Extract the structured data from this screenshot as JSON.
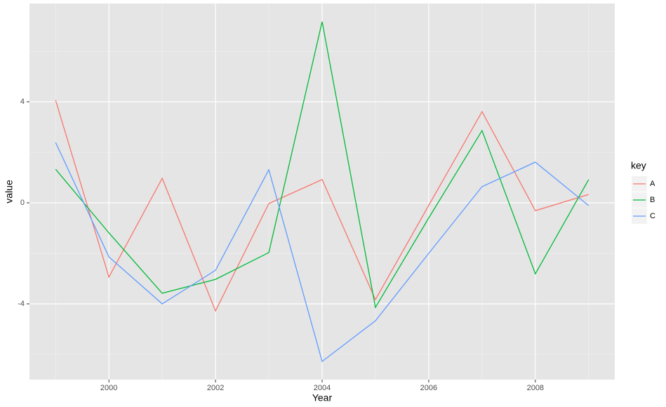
{
  "chart_data": {
    "type": "line",
    "x_label": "Year",
    "y_label": "value",
    "x": [
      1999,
      2000,
      2001,
      2002,
      2003,
      2004,
      2005,
      2006,
      2007,
      2008,
      2009
    ],
    "series": [
      {
        "name": "A",
        "color": "#f8766d",
        "values": [
          4.06,
          -2.94,
          0.97,
          -4.28,
          -0.03,
          0.92,
          -3.83,
          -0.1,
          3.61,
          -0.31,
          0.33
        ]
      },
      {
        "name": "B",
        "color": "#00ba38",
        "values": [
          1.33,
          -1.19,
          -3.58,
          -3.03,
          -1.97,
          7.17,
          -4.14,
          -0.6,
          2.86,
          -2.81,
          0.92
        ]
      },
      {
        "name": "C",
        "color": "#619cff",
        "values": [
          2.39,
          -2.14,
          -4.0,
          -2.67,
          1.31,
          -6.28,
          -4.67,
          -2.0,
          0.64,
          1.61,
          -0.11
        ]
      }
    ],
    "legend_title": "key",
    "legend": "right",
    "xlim": [
      1998.51,
      2009.49
    ],
    "xticks": [
      2000,
      2002,
      2004,
      2006,
      2008
    ],
    "x_minor_ticks": [
      1999,
      2001,
      2003,
      2005,
      2007,
      2009
    ],
    "ylim": [
      -7.0,
      7.89
    ],
    "yticks": [
      -4,
      0,
      4
    ],
    "y_minor_ticks": [
      -6,
      -2,
      2,
      6
    ],
    "grid": true
  }
}
